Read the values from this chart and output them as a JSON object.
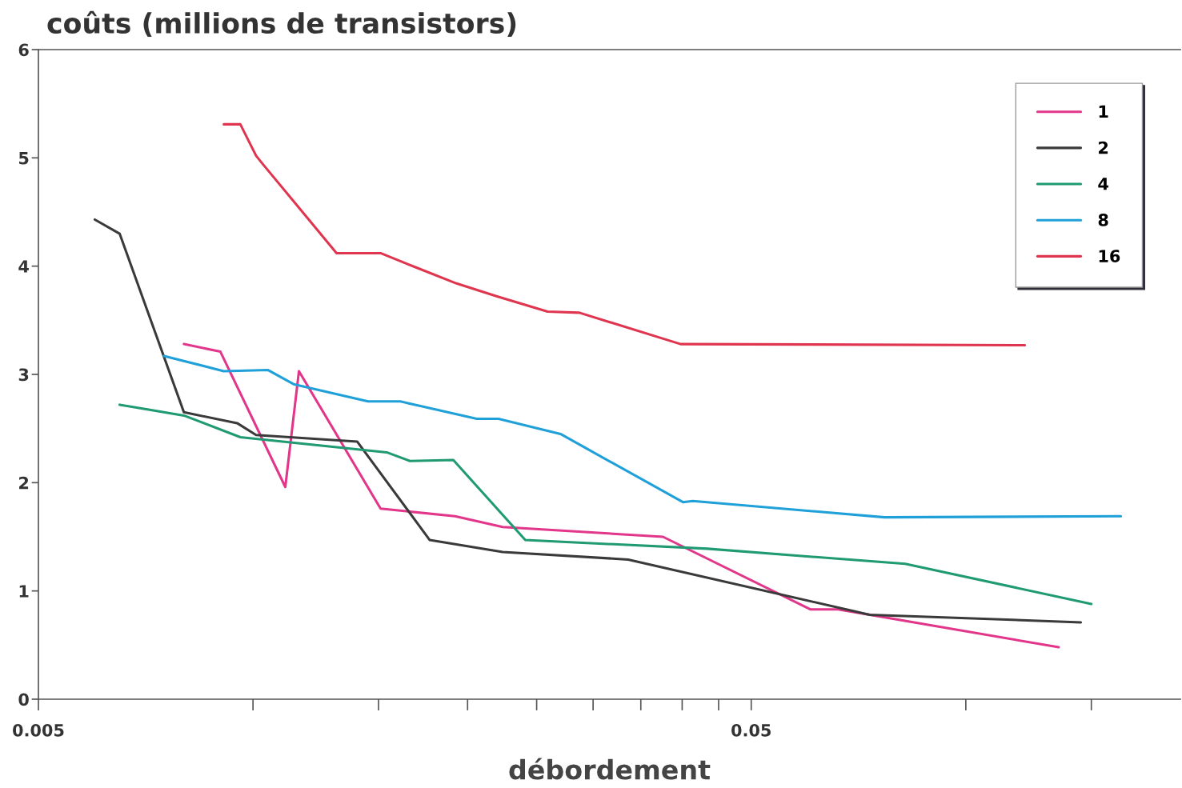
{
  "chart_data": {
    "type": "line",
    "ylabel": "coûts (millions de transistors)",
    "xlabel": "débordement",
    "log": "x",
    "xlim": [
      0.005,
      0.2
    ],
    "xticks": [
      0.005,
      {
        "value": 0.01,
        "label": null
      },
      {
        "value": 0.015,
        "label": null
      },
      {
        "value": 0.02,
        "label": null
      },
      {
        "value": 0.025,
        "label": null
      },
      {
        "value": 0.03,
        "label": null
      },
      {
        "value": 0.035,
        "label": null
      },
      {
        "value": 0.04,
        "label": null
      },
      {
        "value": 0.045,
        "label": null
      },
      0.05,
      {
        "value": 0.1,
        "label": null
      },
      {
        "value": 0.15,
        "label": null
      }
    ],
    "ylim": [
      0,
      6
    ],
    "yticks": [
      0,
      1,
      2,
      3,
      4,
      5,
      6
    ],
    "grid": false,
    "legend": "top right",
    "line_style": "solid",
    "series": [
      {
        "name": "1",
        "color": "#e2368a",
        "x": [
          0.008,
          0.009,
          0.0111,
          0.0116,
          0.0151,
          0.0192,
          0.0224,
          0.0376,
          0.0605,
          0.0662,
          0.135
        ],
        "values": [
          3.28,
          3.21,
          1.96,
          3.03,
          1.76,
          1.69,
          1.59,
          1.5,
          0.83,
          0.83,
          0.48
        ]
      },
      {
        "name": "2",
        "color": "#3a3a3a",
        "x": [
          0.006,
          0.0065,
          0.008,
          0.0095,
          0.0101,
          0.014,
          0.0177,
          0.0224,
          0.0336,
          0.0733,
          0.145
        ],
        "values": [
          4.43,
          4.3,
          2.65,
          2.55,
          2.44,
          2.38,
          1.47,
          1.36,
          1.29,
          0.78,
          0.71
        ]
      },
      {
        "name": "4",
        "color": "#1f9a72",
        "x": [
          0.0065,
          0.008,
          0.0096,
          0.0154,
          0.0166,
          0.0191,
          0.0241,
          0.0434,
          0.0822,
          0.15
        ],
        "values": [
          2.72,
          2.62,
          2.42,
          2.28,
          2.2,
          2.21,
          1.47,
          1.39,
          1.25,
          0.88
        ]
      },
      {
        "name": "8",
        "color": "#1fa0d8",
        "x": [
          0.0075,
          0.0091,
          0.0105,
          0.0114,
          0.0145,
          0.0161,
          0.0206,
          0.0221,
          0.027,
          0.0401,
          0.0414,
          0.0769,
          0.165
        ],
        "values": [
          3.17,
          3.03,
          3.04,
          2.91,
          2.75,
          2.75,
          2.59,
          2.59,
          2.45,
          1.82,
          1.83,
          1.68,
          1.69
        ]
      },
      {
        "name": "16",
        "color": "#e0354f",
        "x": [
          0.0091,
          0.0096,
          0.0101,
          0.0103,
          0.0131,
          0.0151,
          0.0169,
          0.0193,
          0.022,
          0.0259,
          0.0287,
          0.0398,
          0.121
        ],
        "values": [
          5.31,
          5.31,
          5.02,
          4.95,
          4.12,
          4.12,
          3.99,
          3.84,
          3.72,
          3.58,
          3.57,
          3.28,
          3.27
        ]
      }
    ]
  }
}
